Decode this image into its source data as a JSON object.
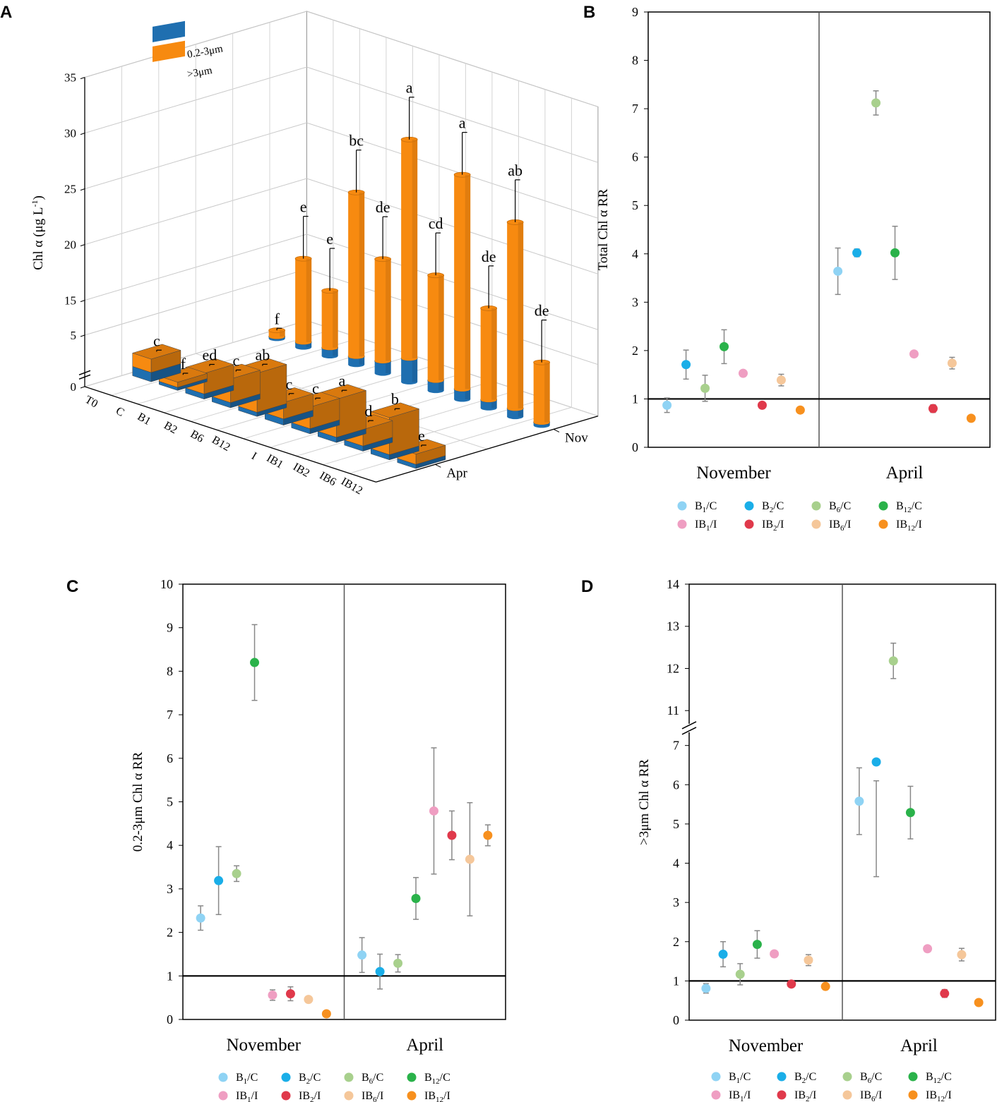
{
  "colors": {
    "blue_bar": "#1f6fb0",
    "orange_bar": "#f78a10",
    "orange_dark": "#c96a06",
    "B1_C": "#8fd3f4",
    "B2_C": "#1aaee8",
    "B6_C": "#a8d08d",
    "B12_C": "#2ab24a",
    "IB1_I": "#ef9ec2",
    "IB2_I": "#e0394b",
    "IB6_I": "#f5c79a",
    "IB12_I": "#f7901e"
  },
  "chart_data": [
    {
      "panel": "A",
      "type": "bar",
      "ylabel_main": "Chl α (μg L",
      "ylabel_sup": "-1",
      "ylabel_end": ")",
      "y_ticks": [
        "0",
        "5",
        "15",
        "20",
        "25",
        "30",
        "35"
      ],
      "categories": [
        "T0",
        "C",
        "B1",
        "B2",
        "B6",
        "B12",
        "I",
        "IB1",
        "IB2",
        "IB6",
        "IB12"
      ],
      "months": [
        "Apr",
        "Nov"
      ],
      "legend": [
        {
          "label": "0.2-3μm",
          "color_key": "blue_bar"
        },
        {
          "label": ">3μm",
          "color_key": "orange_bar"
        }
      ],
      "series": [
        {
          "month": "Apr",
          "values_small": [
            0.9,
            0.3,
            0.5,
            0.5,
            0.4,
            0.6,
            0.5,
            0.5,
            0.5,
            0.5,
            0.4
          ],
          "values_large": [
            1.3,
            0.5,
            2.0,
            2.3,
            3.8,
            1.6,
            2.1,
            3.7,
            1.6,
            3.6,
            1.0
          ],
          "letters": [
            "c",
            "f",
            "ed",
            "c",
            "ab",
            "c",
            "c",
            "a",
            "d",
            "b",
            "e"
          ]
        },
        {
          "month": "Nov",
          "values_small": [
            0.2,
            0.5,
            0.8,
            0.8,
            1.2,
            2.3,
            1.0,
            1.0,
            0.8,
            0.8,
            0.3
          ],
          "values_large": [
            0.6,
            14.7,
            12.3,
            21.9,
            16.3,
            26.7,
            16.6,
            26.4,
            15.4,
            23.9,
            12.6
          ],
          "letters": [
            "f",
            "e",
            "e",
            "bc",
            "de",
            "a",
            "cd",
            "a",
            "de",
            "ab",
            "de"
          ]
        }
      ]
    },
    {
      "panel": "B",
      "type": "scatter",
      "ylabel": "Total Chl α RR",
      "ylim": [
        0,
        9
      ],
      "y_ticks": [
        0,
        1,
        2,
        3,
        4,
        5,
        6,
        7,
        8,
        9
      ],
      "groups": [
        "November",
        "April"
      ],
      "reference_line": 1,
      "points": [
        {
          "group": "November",
          "series": "B1_C",
          "y": 0.87,
          "err": 0.15
        },
        {
          "group": "November",
          "series": "B2_C",
          "y": 1.71,
          "err": 0.3
        },
        {
          "group": "November",
          "series": "B6_C",
          "y": 1.22,
          "err": 0.27
        },
        {
          "group": "November",
          "series": "B12_C",
          "y": 2.08,
          "err": 0.35
        },
        {
          "group": "November",
          "series": "IB1_I",
          "y": 1.53,
          "err": 0.06
        },
        {
          "group": "November",
          "series": "IB2_I",
          "y": 0.87,
          "err": 0.06
        },
        {
          "group": "November",
          "series": "IB6_I",
          "y": 1.39,
          "err": 0.12
        },
        {
          "group": "November",
          "series": "IB12_I",
          "y": 0.77,
          "err": 0.05
        },
        {
          "group": "April",
          "series": "B1_C",
          "y": 3.64,
          "err": 0.48
        },
        {
          "group": "April",
          "series": "B2_C",
          "y": 4.02,
          "err": 0.08
        },
        {
          "group": "April",
          "series": "B6_C",
          "y": 7.12,
          "err": 0.25
        },
        {
          "group": "April",
          "series": "B12_C",
          "y": 4.02,
          "err": 0.55
        },
        {
          "group": "April",
          "series": "IB1_I",
          "y": 1.93,
          "err": 0.05
        },
        {
          "group": "April",
          "series": "IB2_I",
          "y": 0.8,
          "err": 0.08
        },
        {
          "group": "April",
          "series": "IB6_I",
          "y": 1.74,
          "err": 0.12
        },
        {
          "group": "April",
          "series": "IB12_I",
          "y": 0.6,
          "err": 0.06
        }
      ]
    },
    {
      "panel": "C",
      "type": "scatter",
      "ylabel": "0.2-3μm Chl α RR",
      "ylim": [
        0,
        10
      ],
      "y_ticks": [
        0,
        1,
        2,
        3,
        4,
        5,
        6,
        7,
        8,
        9,
        10
      ],
      "groups": [
        "November",
        "April"
      ],
      "reference_line": 1,
      "points": [
        {
          "group": "November",
          "series": "B1_C",
          "y": 2.33,
          "err": 0.28
        },
        {
          "group": "November",
          "series": "B2_C",
          "y": 3.19,
          "err": 0.78
        },
        {
          "group": "November",
          "series": "B6_C",
          "y": 3.35,
          "err": 0.18
        },
        {
          "group": "November",
          "series": "B12_C",
          "y": 8.2,
          "err": 0.87
        },
        {
          "group": "November",
          "series": "IB1_I",
          "y": 0.56,
          "err": 0.12
        },
        {
          "group": "November",
          "series": "IB2_I",
          "y": 0.59,
          "err": 0.16
        },
        {
          "group": "November",
          "series": "IB6_I",
          "y": 0.46,
          "err": 0.07
        },
        {
          "group": "November",
          "series": "IB12_I",
          "y": 0.13,
          "err": 0.05
        },
        {
          "group": "April",
          "series": "B1_C",
          "y": 1.48,
          "err": 0.4
        },
        {
          "group": "April",
          "series": "B2_C",
          "y": 1.1,
          "err": 0.4
        },
        {
          "group": "April",
          "series": "B6_C",
          "y": 1.29,
          "err": 0.2
        },
        {
          "group": "April",
          "series": "B12_C",
          "y": 2.78,
          "err": 0.48
        },
        {
          "group": "April",
          "series": "IB1_I",
          "y": 4.79,
          "err": 1.45
        },
        {
          "group": "April",
          "series": "IB2_I",
          "y": 4.23,
          "err": 0.56
        },
        {
          "group": "April",
          "series": "IB6_I",
          "y": 3.68,
          "err": 1.3
        },
        {
          "group": "April",
          "series": "IB12_I",
          "y": 4.23,
          "err": 0.24
        }
      ]
    },
    {
      "panel": "D",
      "type": "scatter",
      "ylabel": ">3μm Chl α RR",
      "ylim": [
        0,
        14
      ],
      "axis_break": [
        7,
        11
      ],
      "y_ticks": [
        0,
        1,
        2,
        3,
        4,
        5,
        6,
        7,
        11,
        12,
        13,
        14
      ],
      "groups": [
        "November",
        "April"
      ],
      "reference_line": 1,
      "points": [
        {
          "group": "November",
          "series": "B1_C",
          "y": 0.81,
          "err": 0.12
        },
        {
          "group": "November",
          "series": "B2_C",
          "y": 1.68,
          "err": 0.32
        },
        {
          "group": "November",
          "series": "B6_C",
          "y": 1.17,
          "err": 0.27
        },
        {
          "group": "November",
          "series": "B12_C",
          "y": 1.93,
          "err": 0.35
        },
        {
          "group": "November",
          "series": "IB1_I",
          "y": 1.69,
          "err": 0.07
        },
        {
          "group": "November",
          "series": "IB2_I",
          "y": 0.92,
          "err": 0.04
        },
        {
          "group": "November",
          "series": "IB6_I",
          "y": 1.53,
          "err": 0.14
        },
        {
          "group": "November",
          "series": "IB12_I",
          "y": 0.86,
          "err": 0.06
        },
        {
          "group": "April",
          "series": "B1_C",
          "y": 5.58,
          "err": 0.85
        },
        {
          "group": "April",
          "series": "B2_C",
          "y": 6.58,
          "err": 0.48
        },
        {
          "group": "April",
          "series": "B6_C",
          "y": 12.18,
          "err": 0.42
        },
        {
          "group": "April",
          "series": "B12_C",
          "y": 5.29,
          "err": 0.67
        },
        {
          "group": "April",
          "series": "IB1_I",
          "y": 1.82,
          "err": 0.07
        },
        {
          "group": "April",
          "series": "IB2_I",
          "y": 0.68,
          "err": 0.1
        },
        {
          "group": "April",
          "series": "IB6_I",
          "y": 1.67,
          "err": 0.16
        },
        {
          "group": "April",
          "series": "IB12_I",
          "y": 0.45,
          "err": 0.05
        }
      ]
    }
  ],
  "legend": [
    {
      "key": "B1_C",
      "prefix": "B",
      "sub": "1",
      "suffix": "/C"
    },
    {
      "key": "B2_C",
      "prefix": "B",
      "sub": "2",
      "suffix": "/C"
    },
    {
      "key": "B6_C",
      "prefix": "B",
      "sub": "6",
      "suffix": "/C"
    },
    {
      "key": "B12_C",
      "prefix": "B",
      "sub": "12",
      "suffix": "/C"
    },
    {
      "key": "IB1_I",
      "prefix": "IB",
      "sub": "1",
      "suffix": "/I"
    },
    {
      "key": "IB2_I",
      "prefix": "IB",
      "sub": "2",
      "suffix": "/I"
    },
    {
      "key": "IB6_I",
      "prefix": "IB",
      "sub": "6",
      "suffix": "/I"
    },
    {
      "key": "IB12_I",
      "prefix": "IB",
      "sub": "12",
      "suffix": "/I"
    }
  ]
}
